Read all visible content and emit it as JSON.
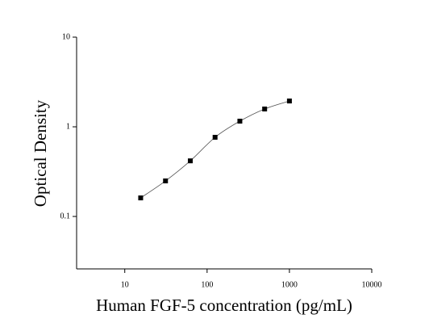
{
  "chart_data": {
    "type": "scatter",
    "x_label": "Human FGF-5 concentration (pg/mL)",
    "y_label": "Optical Density",
    "x": [
      15.6,
      31.25,
      62.5,
      125,
      250,
      500,
      1000
    ],
    "values": [
      0.161,
      0.249,
      0.417,
      0.764,
      1.156,
      1.58,
      1.94
    ],
    "color": "#000000",
    "fit_line": true,
    "xscale": "log",
    "yscale": "log",
    "xlim": [
      2.6,
      10000
    ],
    "ylim": [
      0.026,
      10
    ],
    "xticks": [
      10,
      100,
      1000,
      10000
    ],
    "yticks": [
      0.1,
      1,
      10
    ]
  }
}
